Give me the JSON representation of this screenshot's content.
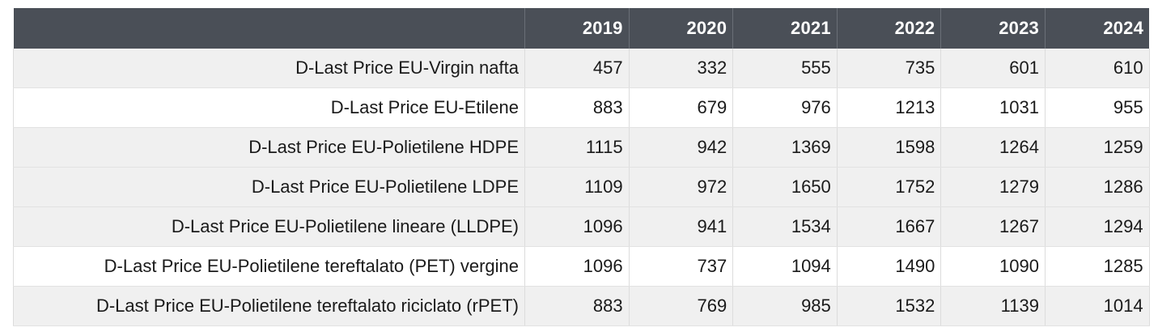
{
  "chart_data": {
    "type": "table",
    "title": "",
    "columns": [
      "",
      "2019",
      "2020",
      "2021",
      "2022",
      "2023",
      "2024"
    ],
    "rows": [
      {
        "label": "D-Last Price EU-Virgin nafta",
        "values": [
          "457",
          "332",
          "555",
          "735",
          "601",
          "610"
        ]
      },
      {
        "label": "D-Last Price EU-Etilene",
        "values": [
          "883",
          "679",
          "976",
          "1213",
          "1031",
          "955"
        ]
      },
      {
        "label": "D-Last Price EU-Polietilene HDPE",
        "values": [
          "1115",
          "942",
          "1369",
          "1598",
          "1264",
          "1259"
        ]
      },
      {
        "label": "D-Last Price EU-Polietilene LDPE",
        "values": [
          "1109",
          "972",
          "1650",
          "1752",
          "1279",
          "1286"
        ]
      },
      {
        "label": "D-Last Price EU-Polietilene lineare (LLDPE)",
        "values": [
          "1096",
          "941",
          "1534",
          "1667",
          "1267",
          "1294"
        ]
      },
      {
        "label": "D-Last Price EU-Polietilene tereftalato (PET) vergine",
        "values": [
          "1096",
          "737",
          "1094",
          "1490",
          "1090",
          "1285"
        ]
      },
      {
        "label": "D-Last Price EU-Polietilene tereftalato riciclato (rPET)",
        "values": [
          "883",
          "769",
          "985",
          "1532",
          "1139",
          "1014"
        ]
      }
    ]
  },
  "colors": {
    "header_bg": "#4a4f57",
    "header_text": "#ffffff",
    "row_shaded": "#f0f0f0",
    "row_plain": "#ffffff"
  }
}
